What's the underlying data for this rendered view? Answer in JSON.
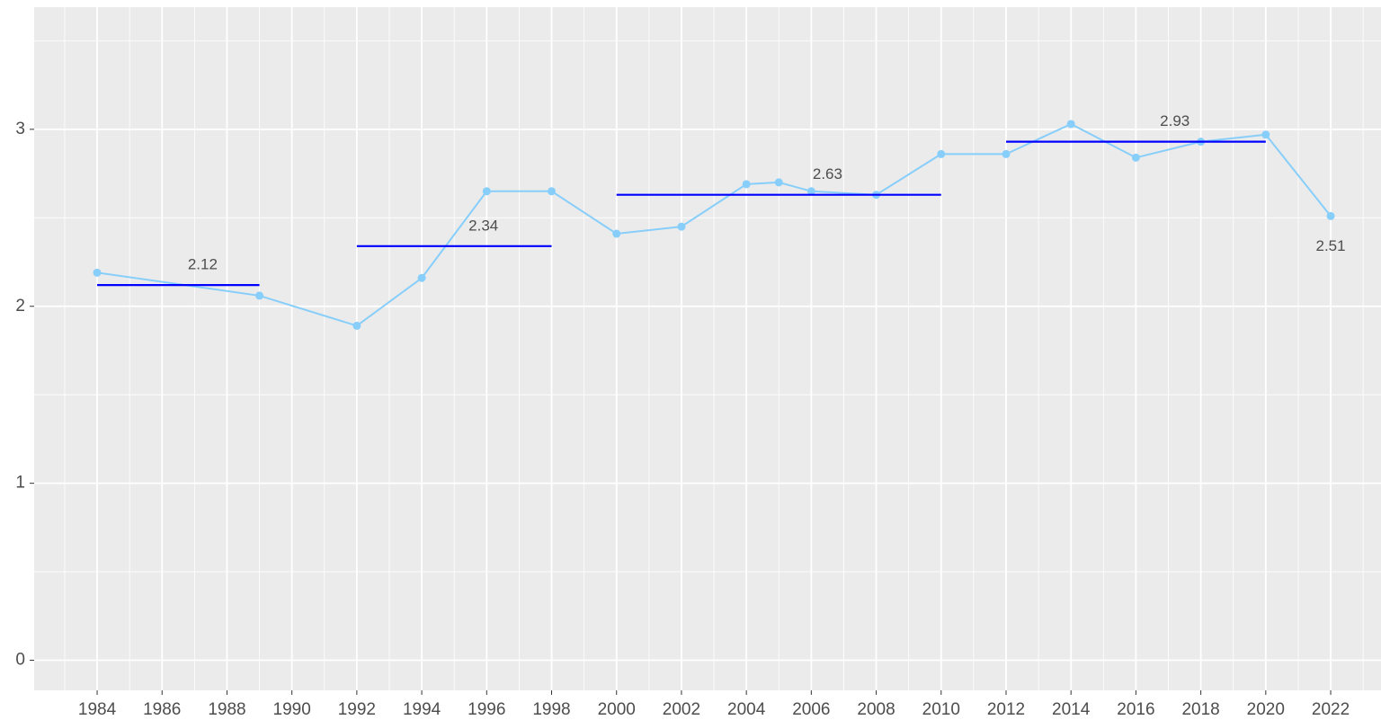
{
  "chart_data": {
    "type": "line",
    "x": [
      1984,
      1989,
      1992,
      1994,
      1996,
      1998,
      2000,
      2002,
      2004,
      2005,
      2006,
      2008,
      2010,
      2012,
      2014,
      2016,
      2018,
      2020,
      2022
    ],
    "series": [
      {
        "color": "#87cefa",
        "values": [
          2.19,
          2.06,
          1.89,
          2.16,
          2.65,
          2.65,
          2.41,
          2.45,
          2.69,
          2.7,
          2.65,
          2.63,
          2.86,
          2.86,
          3.03,
          2.84,
          2.93,
          2.97,
          2.51
        ]
      }
    ],
    "segments": [
      {
        "x": [
          1984,
          1989
        ],
        "value": 2.12
      },
      {
        "x": [
          1992,
          1998
        ],
        "value": 2.34
      },
      {
        "x": [
          2000,
          2010
        ],
        "value": 2.63
      },
      {
        "x": [
          2012,
          2020
        ],
        "value": 2.93
      },
      {
        "x": [
          2022,
          2022
        ],
        "value": 2.51
      }
    ],
    "segment_color": "#0000ff",
    "xlim": [
      1982.06,
      2023.55
    ],
    "xticks": [
      1984,
      1986,
      1988,
      1990,
      1992,
      1994,
      1996,
      1998,
      2000,
      2002,
      2004,
      2006,
      2008,
      2010,
      2012,
      2014,
      2016,
      2018,
      2020,
      2022
    ],
    "ylim": [
      -0.17,
      3.69
    ],
    "yticks": [
      0,
      1,
      2,
      3
    ],
    "grid": true
  }
}
